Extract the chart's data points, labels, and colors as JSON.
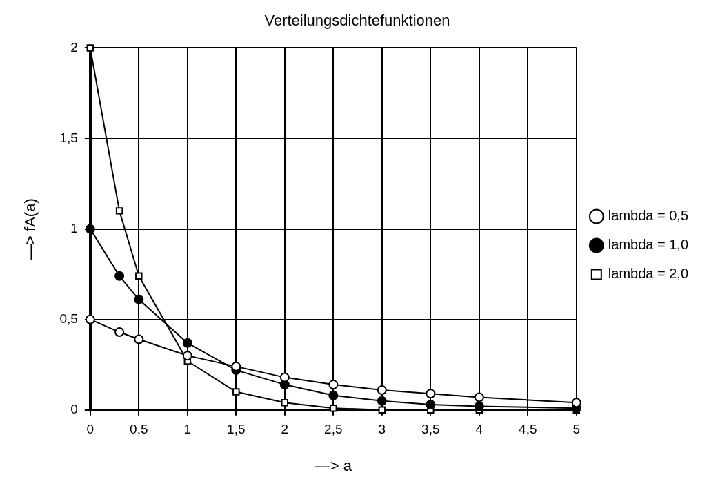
{
  "chart_data": {
    "type": "line",
    "title": "Verteilungsdichtefunktionen",
    "xlabel": "—> a",
    "ylabel": "—> fA(a)",
    "x": [
      0,
      0.3,
      0.5,
      1,
      1.5,
      2,
      2.5,
      3,
      3.5,
      4,
      5
    ],
    "xlim": [
      0,
      5
    ],
    "xticks": [
      0,
      {
        "value": 0.5,
        "label": "0,5"
      },
      1,
      {
        "value": 1.5,
        "label": "1,5"
      },
      2,
      {
        "value": 2.5,
        "label": "2,5"
      },
      3,
      {
        "value": 3.5,
        "label": "3,5"
      },
      4,
      {
        "value": 4.5,
        "label": "4,5"
      },
      5
    ],
    "ylim": [
      0,
      2
    ],
    "yticks": [
      0,
      {
        "value": 0.5,
        "label": "0,5"
      },
      1,
      {
        "value": 1.5,
        "label": "1,5"
      },
      2
    ],
    "grid": true,
    "legend": "right",
    "line_style": "solid",
    "series": [
      {
        "name": "lambda = 0,5",
        "color": "#000000",
        "marker": "circle",
        "values": [
          0.5,
          0.43,
          0.39,
          0.3,
          0.24,
          0.18,
          0.14,
          0.11,
          0.09,
          0.07,
          0.04
        ]
      },
      {
        "name": "lambda = 1,0",
        "color": "#000000",
        "marker": "circle",
        "values": [
          1,
          0.74,
          0.61,
          0.37,
          0.22,
          0.14,
          0.08,
          0.05,
          0.03,
          0.02,
          0.01
        ]
      },
      {
        "name": "lambda = 2,0",
        "color": "#000000",
        "marker": "square",
        "values": [
          2,
          1.1,
          0.74,
          0.27,
          0.1,
          0.04,
          0.01,
          0,
          0,
          0,
          0
        ]
      }
    ]
  }
}
